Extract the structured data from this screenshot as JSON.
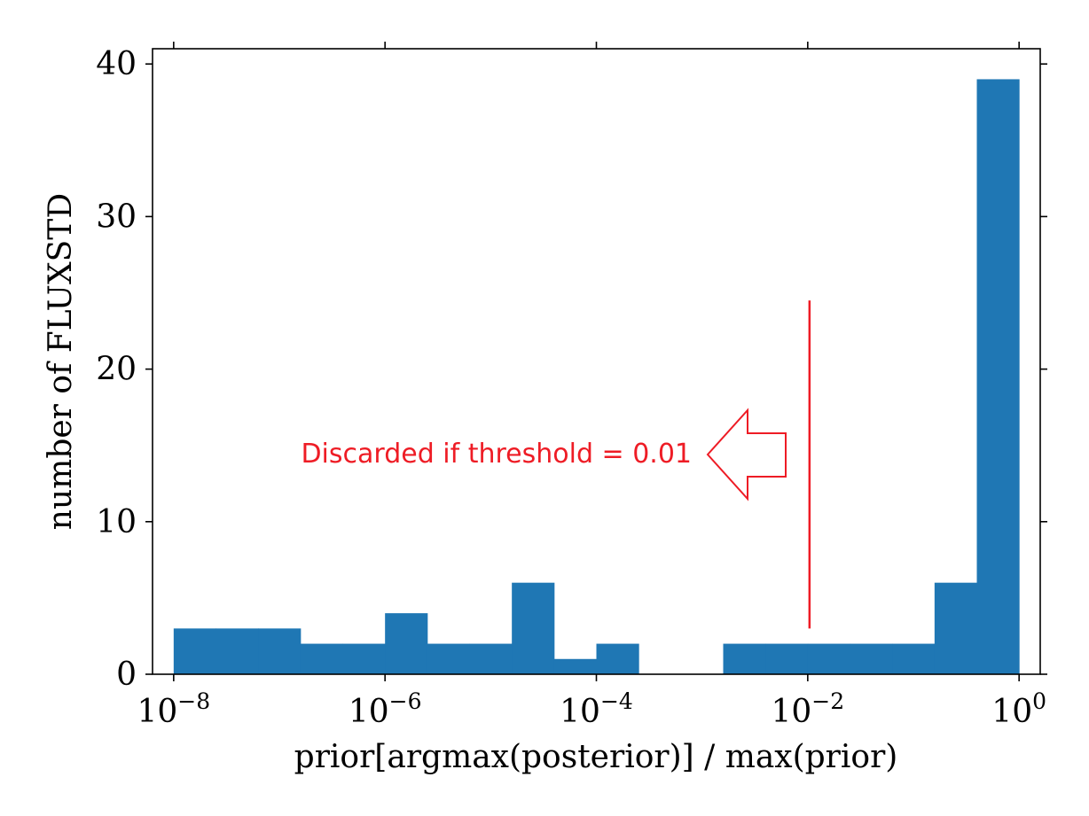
{
  "chart_data": {
    "type": "bar",
    "title": "",
    "xlabel": "prior[argmax(posterior)] / max(prior)",
    "ylabel": "number of FLUXSTD",
    "xscale": "log",
    "xlim_log10": [
      -8.2,
      0.2
    ],
    "ylim": [
      0,
      41
    ],
    "bin_edges_log10": [
      -8,
      -7.6,
      -7.2,
      -6.8,
      -6.4,
      -6,
      -5.6,
      -5.2,
      -4.8,
      -4.4,
      -4,
      -3.6,
      -3.2,
      -2.8,
      -2.4,
      -2,
      -1.6,
      -1.2,
      -0.8,
      -0.4,
      0
    ],
    "values": [
      3,
      3,
      3,
      2,
      2,
      4,
      2,
      2,
      6,
      1,
      2,
      0,
      0,
      2,
      2,
      2,
      2,
      2,
      6,
      39
    ],
    "bar_color": "#1f77b4",
    "yticks": [
      0,
      10,
      20,
      30,
      40
    ],
    "yticklabels": [
      "0",
      "10",
      "20",
      "30",
      "40"
    ],
    "xticks_log10": [
      -8,
      -6,
      -4,
      -2,
      0
    ],
    "xticklabels": [
      {
        "base": "10",
        "exp": "−8"
      },
      {
        "base": "10",
        "exp": "−6"
      },
      {
        "base": "10",
        "exp": "−4"
      },
      {
        "base": "10",
        "exp": "−2"
      },
      {
        "base": "10",
        "exp": "0"
      }
    ],
    "grid": false,
    "annotation": {
      "text": "Discarded if threshold = 0.01",
      "threshold": 0.01,
      "line_y_range": [
        3,
        24.5
      ],
      "arrow_direction": "left",
      "color": "#ee1c25"
    }
  }
}
